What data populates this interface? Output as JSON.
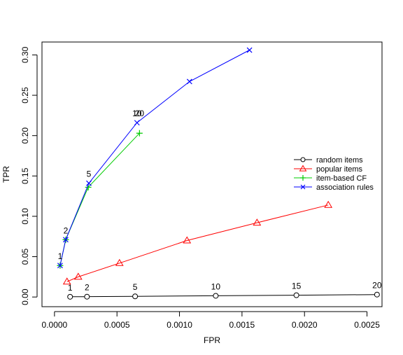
{
  "chart_data": {
    "type": "line",
    "title": "",
    "xlabel": "FPR",
    "ylabel": "TPR",
    "xlim": [
      -0.0001,
      0.00262
    ],
    "ylim": [
      -0.012,
      0.316
    ],
    "x_ticks": [
      0.0,
      0.0005,
      0.001,
      0.0015,
      0.002,
      0.0025
    ],
    "x_tick_labels": [
      "0.0000",
      "0.0005",
      "0.0010",
      "0.0015",
      "0.0020",
      "0.0025"
    ],
    "y_ticks": [
      0.0,
      0.05,
      0.1,
      0.15,
      0.2,
      0.25,
      0.3
    ],
    "y_tick_labels": [
      "0.00",
      "0.05",
      "0.10",
      "0.15",
      "0.20",
      "0.25",
      "0.30"
    ],
    "grid": false,
    "legend_position": "right",
    "series": [
      {
        "name": "random items",
        "color": "#000000",
        "marker": "circle",
        "points": [
          {
            "x": 0.000125,
            "y": 0.0003,
            "label": "1"
          },
          {
            "x": 0.00026,
            "y": 0.0004,
            "label": "2"
          },
          {
            "x": 0.000645,
            "y": 0.0008,
            "label": "5"
          },
          {
            "x": 0.00129,
            "y": 0.0015,
            "label": "10"
          },
          {
            "x": 0.001935,
            "y": 0.0022,
            "label": "15"
          },
          {
            "x": 0.00258,
            "y": 0.003,
            "label": "20"
          }
        ]
      },
      {
        "name": "popular items",
        "color": "#ff0000",
        "marker": "triangle",
        "points": [
          {
            "x": 0.0001,
            "y": 0.019
          },
          {
            "x": 0.00019,
            "y": 0.025
          },
          {
            "x": 0.00052,
            "y": 0.042
          },
          {
            "x": 0.00106,
            "y": 0.07
          },
          {
            "x": 0.00162,
            "y": 0.092
          },
          {
            "x": 0.00219,
            "y": 0.114
          }
        ]
      },
      {
        "name": "item-based CF",
        "color": "#00cc00",
        "marker": "plus",
        "points": [
          {
            "x": 4.5e-05,
            "y": 0.039
          },
          {
            "x": 9e-05,
            "y": 0.071
          },
          {
            "x": 0.00027,
            "y": 0.136
          },
          {
            "x": 0.00068,
            "y": 0.203
          }
        ]
      },
      {
        "name": "association rules",
        "color": "#0000ff",
        "marker": "x",
        "points": [
          {
            "x": 4.5e-05,
            "y": 0.039
          },
          {
            "x": 9e-05,
            "y": 0.071
          },
          {
            "x": 0.000275,
            "y": 0.141
          },
          {
            "x": 0.00066,
            "y": 0.216
          },
          {
            "x": 0.00108,
            "y": 0.267
          },
          {
            "x": 0.00156,
            "y": 0.306
          }
        ]
      }
    ],
    "annotations": [
      {
        "text": "1",
        "x": 4.5e-05,
        "y": 0.039
      },
      {
        "text": "2",
        "x": 9e-05,
        "y": 0.071
      },
      {
        "text": "5",
        "x": 0.000275,
        "y": 0.141
      },
      {
        "text": "10",
        "x": 0.00066,
        "y": 0.216
      },
      {
        "text": "20",
        "x": 0.00068,
        "y": 0.216
      }
    ]
  }
}
